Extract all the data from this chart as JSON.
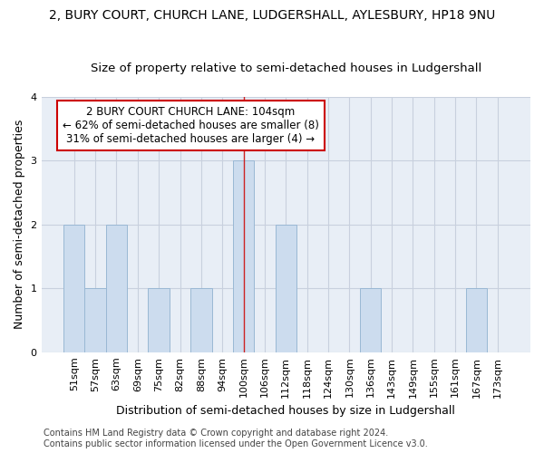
{
  "title": "2, BURY COURT, CHURCH LANE, LUDGERSHALL, AYLESBURY, HP18 9NU",
  "subtitle": "Size of property relative to semi-detached houses in Ludgershall",
  "xlabel": "Distribution of semi-detached houses by size in Ludgershall",
  "ylabel": "Number of semi-detached properties",
  "categories": [
    "51sqm",
    "57sqm",
    "63sqm",
    "69sqm",
    "75sqm",
    "82sqm",
    "88sqm",
    "94sqm",
    "100sqm",
    "106sqm",
    "112sqm",
    "118sqm",
    "124sqm",
    "130sqm",
    "136sqm",
    "143sqm",
    "149sqm",
    "155sqm",
    "161sqm",
    "167sqm",
    "173sqm"
  ],
  "values": [
    2,
    1,
    2,
    0,
    1,
    0,
    1,
    0,
    3,
    0,
    2,
    0,
    0,
    0,
    1,
    0,
    0,
    0,
    0,
    1,
    0
  ],
  "bar_color": "#ccdcee",
  "bar_edge_color": "#9ab8d4",
  "highlight_index": 8,
  "highlight_line_color": "#cc2222",
  "annotation_text": "2 BURY COURT CHURCH LANE: 104sqm\n← 62% of semi-detached houses are smaller (8)\n31% of semi-detached houses are larger (4) →",
  "annotation_box_color": "#ffffff",
  "annotation_box_edge_color": "#cc0000",
  "ylim": [
    0,
    4
  ],
  "yticks": [
    0,
    1,
    2,
    3,
    4
  ],
  "footer": "Contains HM Land Registry data © Crown copyright and database right 2024.\nContains public sector information licensed under the Open Government Licence v3.0.",
  "bg_color": "#ffffff",
  "plot_bg_color": "#e8eef6",
  "grid_color": "#c8d0de",
  "title_fontsize": 10,
  "subtitle_fontsize": 9.5,
  "axis_label_fontsize": 9,
  "tick_fontsize": 8,
  "footer_fontsize": 7,
  "annotation_fontsize": 8.5
}
